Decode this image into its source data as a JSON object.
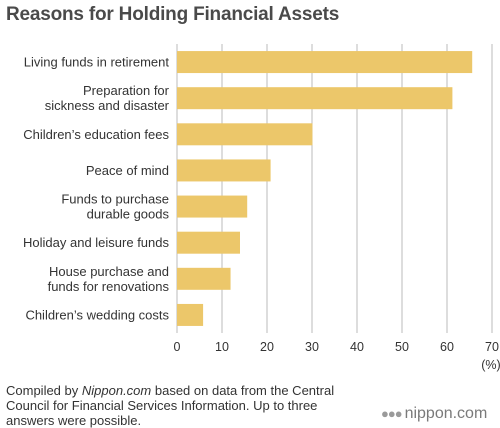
{
  "chart_data": {
    "type": "bar",
    "orientation": "horizontal",
    "title": "Reasons for Holding Financial Assets",
    "categories": [
      [
        "Living funds in retirement"
      ],
      [
        "Preparation for",
        "sickness and disaster"
      ],
      [
        "Children’s education fees"
      ],
      [
        "Peace of mind"
      ],
      [
        "Funds to purchase",
        "durable goods"
      ],
      [
        "Holiday and leisure funds"
      ],
      [
        "House purchase and",
        "funds for renovations"
      ],
      [
        "Children’s wedding costs"
      ]
    ],
    "values": [
      65.6,
      61.2,
      30.1,
      20.8,
      15.6,
      14.0,
      11.9,
      5.8
    ],
    "xlim": [
      0,
      70
    ],
    "xticks": [
      "0",
      "10",
      "20",
      "30",
      "40",
      "50",
      "60",
      "70"
    ],
    "unit_label": "(%)",
    "grid": true,
    "bar_color": "#ecc76a",
    "grid_color": "#bbbbbb"
  },
  "footer": {
    "prefix": "Compiled by ",
    "source_name": "Nippon.com",
    "suffix": " based on data from the Central Council for Financial Services Information. Up to three answers were possible."
  },
  "brand": {
    "dots": "●●●",
    "name": "nippon.com"
  }
}
